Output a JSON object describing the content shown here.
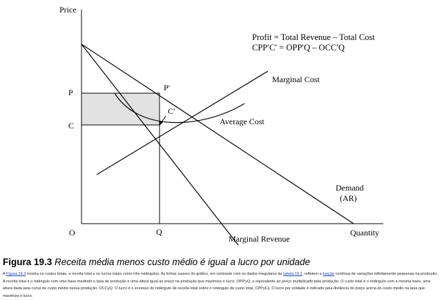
{
  "diagram": {
    "axis_y_label": "Price",
    "axis_x_label": "Quantity",
    "origin_label": "O",
    "p_label": "P",
    "c_label": "C",
    "q_label": "Q",
    "p_prime_label": "P′",
    "c_prime_label": "C′",
    "formula_line1": "Profit = Total Revenue – Total Cost",
    "formula_line2": "CPP′C′ = OPP′Q – OCC′Q",
    "marginal_cost_label": "Marginal Cost",
    "average_cost_label": "Average Cost",
    "demand_label_1": "Demand",
    "demand_label_2": "(AR)",
    "marginal_revenue_label": "Marginal Revenue"
  },
  "caption": {
    "number": "Figura 19.3",
    "title": "Receita média menos custo médio é igual a lucro por unidade"
  },
  "body": {
    "seg1": "A ",
    "link1": "Figura 19.3",
    "seg2": " mostra os custos totais, a receita total e os lucros totais como três retângulos. As linhas suaves do gráfico, em contraste com os dados irregulares da ",
    "link2": "tabela 19.2",
    "seg3": ", refletem a ",
    "link3": "função",
    "seg4": " contínua de variações infinitamente pequenas na produção. A receita total é o retângulo com uma base medindo a taxa de produção e uma altura igual ao preço na produção que maximiza o lucro, OPP′yQ, o equivalente ao preço multiplicado pela produção. O custo total é o retângulo com a mesma base, uma altura dada pela curva de custo médio nessa produção, OCCyQ. O lucro é o excesso do retângulo de receita total sobre o retângulo de custo total, CPPyCy. O lucro por unidade é indicado pela distância do preço acima do custo médio na taxa que maximiza o lucro."
  },
  "colors": {
    "shaded_rectangle": "#e2e2e2",
    "link": "#1a3fb0"
  }
}
